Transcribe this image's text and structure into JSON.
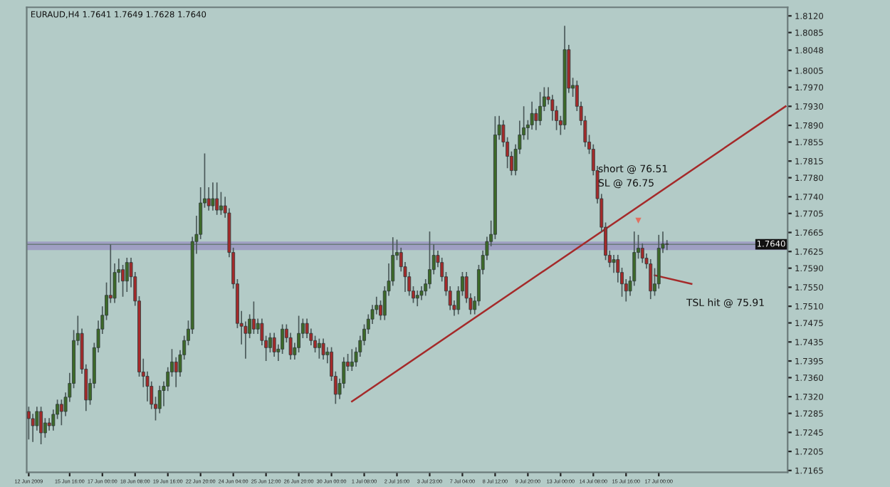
{
  "chart_data": {
    "type": "candlestick",
    "title": "EURAUD,H4 1.7641 1.7649 1.7628 1.7640",
    "annotations": [
      "short @ 76.51",
      "SL @ 76.75",
      "TSL hit @ 75.91"
    ],
    "categories": [
      "12 Jun 2009",
      null,
      null,
      null,
      null,
      null,
      null,
      null,
      null,
      null,
      "15 Jun 16:00",
      null,
      null,
      null,
      null,
      null,
      null,
      null,
      "17 Jun 00:00",
      null,
      null,
      null,
      null,
      null,
      null,
      null,
      "18 Jun 08:00",
      null,
      null,
      null,
      null,
      null,
      null,
      null,
      "19 Jun 16:00",
      null,
      null,
      null,
      null,
      null,
      null,
      null,
      "22 Jun 20:00",
      null,
      null,
      null,
      null,
      null,
      null,
      null,
      "24 Jun 04:00",
      null,
      null,
      null,
      null,
      null,
      null,
      null,
      "25 Jun 12:00",
      null,
      null,
      null,
      null,
      null,
      null,
      null,
      "26 Jun 20:00",
      null,
      null,
      null,
      null,
      null,
      null,
      null,
      "30 Jun 00:00",
      null,
      null,
      null,
      null,
      null,
      null,
      null,
      "1 Jul 08:00",
      null,
      null,
      null,
      null,
      null,
      null,
      null,
      "2 Jul 16:00",
      null,
      null,
      null,
      null,
      null,
      null,
      null,
      "3 Jul 23:00",
      null,
      null,
      null,
      null,
      null,
      null,
      null,
      "7 Jul 04:00",
      null,
      null,
      null,
      null,
      null,
      null,
      null,
      "8 Jul 12:00",
      null,
      null,
      null,
      null,
      null,
      null,
      null,
      "9 Jul 20:00",
      null,
      null,
      null,
      null,
      null,
      null,
      null,
      "13 Jul 00:00",
      null,
      null,
      null,
      null,
      null,
      null,
      null,
      "14 Jul 08:00",
      null,
      null,
      null,
      null,
      null,
      null,
      null,
      "15 Jul 16:00",
      null,
      null,
      null,
      null,
      null,
      null,
      null,
      "17 Jul 00:00",
      null,
      null,
      null,
      null,
      null,
      null,
      null,
      null,
      null,
      null,
      null,
      null,
      null,
      null,
      null,
      null,
      null,
      null,
      null,
      null,
      null,
      null,
      null,
      null,
      null,
      null,
      null,
      null,
      null,
      null,
      null
    ],
    "ohlc": [
      [
        1.7289,
        1.7299,
        1.723,
        1.7274
      ],
      [
        1.7274,
        1.7284,
        1.7225,
        1.7259
      ],
      [
        1.7259,
        1.7299,
        1.7249,
        1.7289
      ],
      [
        1.7289,
        1.7299,
        1.722,
        1.7244
      ],
      [
        1.7244,
        1.7275,
        1.7234,
        1.7265
      ],
      [
        1.7265,
        1.7275,
        1.7249,
        1.7259
      ],
      [
        1.7259,
        1.7293,
        1.7249,
        1.7283
      ],
      [
        1.7283,
        1.7314,
        1.7273,
        1.7304
      ],
      [
        1.7304,
        1.7314,
        1.726,
        1.7289
      ],
      [
        1.7289,
        1.7329,
        1.7279,
        1.7319
      ],
      [
        1.7319,
        1.737,
        1.7309,
        1.7348
      ],
      [
        1.7348,
        1.746,
        1.7338,
        1.7438
      ],
      [
        1.7438,
        1.749,
        1.7428,
        1.7453
      ],
      [
        1.7453,
        1.7463,
        1.7368,
        1.7378
      ],
      [
        1.7378,
        1.7388,
        1.729,
        1.7313
      ],
      [
        1.7313,
        1.7358,
        1.7303,
        1.7348
      ],
      [
        1.7348,
        1.7433,
        1.7338,
        1.7423
      ],
      [
        1.7423,
        1.748,
        1.7413,
        1.7462
      ],
      [
        1.7462,
        1.751,
        1.7452,
        1.7491
      ],
      [
        1.7491,
        1.756,
        1.7481,
        1.7533
      ],
      [
        1.7533,
        1.764,
        1.7517,
        1.7527
      ],
      [
        1.7527,
        1.76,
        1.7517,
        1.7581
      ],
      [
        1.7581,
        1.761,
        1.756,
        1.7587
      ],
      [
        1.7587,
        1.7597,
        1.753,
        1.7563
      ],
      [
        1.7563,
        1.7612,
        1.754,
        1.7602
      ],
      [
        1.7602,
        1.7612,
        1.755,
        1.7572
      ],
      [
        1.7572,
        1.7582,
        1.7511,
        1.7521
      ],
      [
        1.7521,
        1.7531,
        1.7362,
        1.7372
      ],
      [
        1.7372,
        1.74,
        1.734,
        1.7363
      ],
      [
        1.7363,
        1.7373,
        1.731,
        1.7342
      ],
      [
        1.7342,
        1.7352,
        1.7294,
        1.7304
      ],
      [
        1.7304,
        1.732,
        1.727,
        1.7295
      ],
      [
        1.7295,
        1.7343,
        1.7285,
        1.7333
      ],
      [
        1.7333,
        1.7352,
        1.73,
        1.7342
      ],
      [
        1.7342,
        1.7382,
        1.7332,
        1.7372
      ],
      [
        1.7372,
        1.742,
        1.7362,
        1.7393
      ],
      [
        1.7393,
        1.7403,
        1.734,
        1.7372
      ],
      [
        1.7372,
        1.7418,
        1.7362,
        1.7408
      ],
      [
        1.7408,
        1.7448,
        1.7398,
        1.7438
      ],
      [
        1.7438,
        1.748,
        1.7428,
        1.7462
      ],
      [
        1.7462,
        1.7656,
        1.7452,
        1.7646
      ],
      [
        1.7646,
        1.77,
        1.762,
        1.7661
      ],
      [
        1.7661,
        1.776,
        1.7651,
        1.7727
      ],
      [
        1.7727,
        1.7831,
        1.7717,
        1.7736
      ],
      [
        1.7736,
        1.776,
        1.7711,
        1.7721
      ],
      [
        1.7721,
        1.777,
        1.7711,
        1.7736
      ],
      [
        1.7736,
        1.777,
        1.7702,
        1.7712
      ],
      [
        1.7712,
        1.775,
        1.7702,
        1.7721
      ],
      [
        1.7721,
        1.774,
        1.7696,
        1.7706
      ],
      [
        1.7706,
        1.7716,
        1.7613,
        1.7623
      ],
      [
        1.7623,
        1.7633,
        1.7547,
        1.7557
      ],
      [
        1.7557,
        1.7567,
        1.7464,
        1.7474
      ],
      [
        1.7474,
        1.75,
        1.743,
        1.7468
      ],
      [
        1.7468,
        1.7478,
        1.74,
        1.7453
      ],
      [
        1.7453,
        1.7493,
        1.7443,
        1.7483
      ],
      [
        1.7483,
        1.752,
        1.7452,
        1.7462
      ],
      [
        1.7462,
        1.7484,
        1.7452,
        1.7474
      ],
      [
        1.7474,
        1.7484,
        1.7428,
        1.7438
      ],
      [
        1.7438,
        1.7448,
        1.7395,
        1.7423
      ],
      [
        1.7423,
        1.7454,
        1.7413,
        1.7444
      ],
      [
        1.7444,
        1.7454,
        1.7404,
        1.7414
      ],
      [
        1.7414,
        1.743,
        1.7395,
        1.742
      ],
      [
        1.742,
        1.7472,
        1.741,
        1.7462
      ],
      [
        1.7462,
        1.7472,
        1.7434,
        1.7444
      ],
      [
        1.7444,
        1.7454,
        1.7398,
        1.7408
      ],
      [
        1.7408,
        1.7433,
        1.7398,
        1.7423
      ],
      [
        1.7423,
        1.749,
        1.7413,
        1.7453
      ],
      [
        1.7453,
        1.7484,
        1.7443,
        1.7474
      ],
      [
        1.7474,
        1.7484,
        1.7443,
        1.7453
      ],
      [
        1.7453,
        1.7463,
        1.7428,
        1.7438
      ],
      [
        1.7438,
        1.7448,
        1.7413,
        1.7423
      ],
      [
        1.7423,
        1.7442,
        1.74,
        1.7432
      ],
      [
        1.7432,
        1.7442,
        1.7398,
        1.7408
      ],
      [
        1.7408,
        1.7424,
        1.739,
        1.7414
      ],
      [
        1.7414,
        1.7424,
        1.7353,
        1.7363
      ],
      [
        1.7363,
        1.7373,
        1.7305,
        1.7325
      ],
      [
        1.7325,
        1.7358,
        1.7315,
        1.7348
      ],
      [
        1.7348,
        1.7403,
        1.7338,
        1.7393
      ],
      [
        1.7393,
        1.741,
        1.7374,
        1.7384
      ],
      [
        1.7384,
        1.742,
        1.7374,
        1.7393
      ],
      [
        1.7393,
        1.7424,
        1.7383,
        1.7414
      ],
      [
        1.7414,
        1.7448,
        1.7404,
        1.7438
      ],
      [
        1.7438,
        1.7472,
        1.7428,
        1.7462
      ],
      [
        1.7462,
        1.7493,
        1.7452,
        1.7483
      ],
      [
        1.7483,
        1.7513,
        1.7473,
        1.7503
      ],
      [
        1.7503,
        1.753,
        1.7493,
        1.7512
      ],
      [
        1.7512,
        1.7522,
        1.7481,
        1.7491
      ],
      [
        1.7491,
        1.7552,
        1.7481,
        1.7542
      ],
      [
        1.7542,
        1.76,
        1.7532,
        1.7563
      ],
      [
        1.7563,
        1.7655,
        1.7553,
        1.7617
      ],
      [
        1.7617,
        1.765,
        1.7607,
        1.7623
      ],
      [
        1.7623,
        1.7633,
        1.7583,
        1.7593
      ],
      [
        1.7593,
        1.7603,
        1.754,
        1.7572
      ],
      [
        1.7572,
        1.7582,
        1.7532,
        1.7542
      ],
      [
        1.7542,
        1.7552,
        1.7517,
        1.7527
      ],
      [
        1.7527,
        1.7543,
        1.751,
        1.7533
      ],
      [
        1.7533,
        1.7552,
        1.7523,
        1.7542
      ],
      [
        1.7542,
        1.7567,
        1.7532,
        1.7557
      ],
      [
        1.7557,
        1.7667,
        1.7547,
        1.7587
      ],
      [
        1.7587,
        1.764,
        1.7577,
        1.7617
      ],
      [
        1.7617,
        1.7627,
        1.7592,
        1.7602
      ],
      [
        1.7602,
        1.7612,
        1.7562,
        1.7572
      ],
      [
        1.7572,
        1.7582,
        1.7532,
        1.7542
      ],
      [
        1.7542,
        1.7552,
        1.7502,
        1.7512
      ],
      [
        1.7512,
        1.7522,
        1.749,
        1.7503
      ],
      [
        1.7503,
        1.7552,
        1.7493,
        1.7542
      ],
      [
        1.7542,
        1.7582,
        1.7532,
        1.7572
      ],
      [
        1.7572,
        1.7582,
        1.7517,
        1.7527
      ],
      [
        1.7527,
        1.7537,
        1.7493,
        1.7503
      ],
      [
        1.7503,
        1.7531,
        1.7493,
        1.7521
      ],
      [
        1.7521,
        1.7597,
        1.7511,
        1.7587
      ],
      [
        1.7587,
        1.7627,
        1.7577,
        1.7617
      ],
      [
        1.7617,
        1.7656,
        1.7607,
        1.7646
      ],
      [
        1.7646,
        1.769,
        1.7636,
        1.7661
      ],
      [
        1.7661,
        1.7909,
        1.7651,
        1.787
      ],
      [
        1.787,
        1.791,
        1.786,
        1.7891
      ],
      [
        1.7891,
        1.7901,
        1.7845,
        1.7855
      ],
      [
        1.7855,
        1.7865,
        1.78,
        1.7825
      ],
      [
        1.7825,
        1.7835,
        1.7785,
        1.7795
      ],
      [
        1.7795,
        1.785,
        1.7785,
        1.784
      ],
      [
        1.784,
        1.79,
        1.783,
        1.787
      ],
      [
        1.787,
        1.793,
        1.786,
        1.7885
      ],
      [
        1.7885,
        1.7901,
        1.786,
        1.7891
      ],
      [
        1.7891,
        1.794,
        1.7881,
        1.7915
      ],
      [
        1.7915,
        1.7925,
        1.788,
        1.79
      ],
      [
        1.79,
        1.796,
        1.789,
        1.793
      ],
      [
        1.793,
        1.797,
        1.792,
        1.795
      ],
      [
        1.795,
        1.797,
        1.7934,
        1.7944
      ],
      [
        1.7944,
        1.7954,
        1.79,
        1.7921
      ],
      [
        1.7921,
        1.7931,
        1.788,
        1.79
      ],
      [
        1.79,
        1.791,
        1.787,
        1.7891
      ],
      [
        1.7891,
        1.8099,
        1.7881,
        1.8049
      ],
      [
        1.8049,
        1.8059,
        1.7958,
        1.7968
      ],
      [
        1.7968,
        1.799,
        1.795,
        1.7974
      ],
      [
        1.7974,
        1.7984,
        1.792,
        1.793
      ],
      [
        1.793,
        1.794,
        1.789,
        1.79
      ],
      [
        1.79,
        1.791,
        1.7845,
        1.7855
      ],
      [
        1.7855,
        1.787,
        1.783,
        1.784
      ],
      [
        1.784,
        1.785,
        1.7785,
        1.7795
      ],
      [
        1.7795,
        1.7805,
        1.7726,
        1.7736
      ],
      [
        1.7736,
        1.7746,
        1.7666,
        1.7676
      ],
      [
        1.7676,
        1.7686,
        1.7607,
        1.7617
      ],
      [
        1.7617,
        1.7627,
        1.7592,
        1.7602
      ],
      [
        1.7602,
        1.7618,
        1.758,
        1.7608
      ],
      [
        1.7608,
        1.7618,
        1.756,
        1.7581
      ],
      [
        1.7581,
        1.7591,
        1.753,
        1.7557
      ],
      [
        1.7557,
        1.7567,
        1.752,
        1.7542
      ],
      [
        1.7542,
        1.7573,
        1.7532,
        1.7563
      ],
      [
        1.7563,
        1.7667,
        1.7553,
        1.7623
      ],
      [
        1.7623,
        1.766,
        1.761,
        1.7632
      ],
      [
        1.7632,
        1.7642,
        1.7601,
        1.7611
      ],
      [
        1.7611,
        1.7621,
        1.7589,
        1.7599
      ],
      [
        1.7599,
        1.7609,
        1.7525,
        1.7542
      ],
      [
        1.7542,
        1.759,
        1.7532,
        1.7557
      ],
      [
        1.7557,
        1.766,
        1.7547,
        1.7632
      ],
      [
        1.7632,
        1.7667,
        1.7622,
        1.7641
      ],
      [
        1.7641,
        1.7649,
        1.7628,
        1.764
      ],
      null,
      null,
      null,
      null,
      null,
      null,
      null,
      null,
      null,
      null,
      null,
      null,
      null,
      null,
      null,
      null,
      null,
      null,
      null,
      null,
      null,
      null,
      null,
      null,
      null,
      null,
      null,
      null,
      null
    ],
    "series": [
      {
        "type": "line",
        "color": "#a52a2a",
        "values": [
          null,
          null,
          null,
          null,
          null,
          null,
          null,
          null,
          null,
          null,
          null,
          null,
          null,
          null,
          null,
          null,
          null,
          null,
          null,
          null,
          null,
          null,
          null,
          null,
          null,
          null,
          null,
          null,
          null,
          null,
          null,
          null,
          null,
          null,
          null,
          null,
          null,
          null,
          null,
          null,
          null,
          null,
          null,
          null,
          null,
          null,
          null,
          null,
          null,
          null,
          null,
          null,
          null,
          null,
          null,
          null,
          null,
          null,
          null,
          null,
          null,
          null,
          null,
          null,
          null,
          null,
          null,
          null,
          null,
          null,
          null,
          null,
          null,
          null,
          null,
          null,
          null,
          null,
          null,
          1.731,
          null,
          null,
          null,
          null,
          null,
          null,
          null,
          null,
          null,
          null,
          null,
          null,
          null,
          null,
          null,
          null,
          null,
          null,
          null,
          null,
          null,
          null,
          null,
          null,
          null,
          null,
          null,
          null,
          null,
          null,
          null,
          null,
          null,
          null,
          null,
          null,
          null,
          null,
          null,
          null,
          null,
          null,
          null,
          null,
          null,
          null,
          null,
          null,
          null,
          null,
          null,
          null,
          null,
          null,
          null,
          null,
          null,
          null,
          null,
          null,
          null,
          null,
          null,
          null,
          null,
          null,
          null,
          null,
          null,
          null,
          null,
          null,
          null,
          null,
          null,
          null,
          null,
          null,
          null,
          null,
          null,
          null,
          null,
          null,
          null,
          null,
          null,
          null,
          null,
          null,
          null,
          null,
          null,
          null,
          null,
          null,
          null,
          null,
          null,
          null,
          null,
          null,
          null,
          null,
          null,
          1.793
        ]
      },
      {
        "type": "line",
        "color": "#a52a2a",
        "values": [
          null,
          null,
          null,
          null,
          null,
          null,
          null,
          null,
          null,
          null,
          null,
          null,
          null,
          null,
          null,
          null,
          null,
          null,
          null,
          null,
          null,
          null,
          null,
          null,
          null,
          null,
          null,
          null,
          null,
          null,
          null,
          null,
          null,
          null,
          null,
          null,
          null,
          null,
          null,
          null,
          null,
          null,
          null,
          null,
          null,
          null,
          null,
          null,
          null,
          null,
          null,
          null,
          null,
          null,
          null,
          null,
          null,
          null,
          null,
          null,
          null,
          null,
          null,
          null,
          null,
          null,
          null,
          null,
          null,
          null,
          null,
          null,
          null,
          null,
          null,
          null,
          null,
          null,
          null,
          null,
          null,
          null,
          null,
          null,
          null,
          null,
          null,
          null,
          null,
          null,
          null,
          null,
          null,
          null,
          null,
          null,
          null,
          null,
          null,
          null,
          null,
          null,
          null,
          null,
          null,
          null,
          null,
          null,
          null,
          null,
          null,
          null,
          null,
          null,
          null,
          null,
          null,
          null,
          null,
          null,
          null,
          null,
          null,
          null,
          null,
          null,
          null,
          null,
          null,
          null,
          null,
          null,
          null,
          null,
          null,
          null,
          null,
          null,
          null,
          null,
          null,
          null,
          null,
          null,
          null,
          null,
          null,
          null,
          null,
          null,
          null,
          null,
          null,
          1.7575,
          null,
          null,
          null,
          null,
          null,
          null,
          null,
          null,
          1.7557,
          null,
          null,
          null,
          null,
          null,
          null,
          null,
          null,
          null,
          null,
          null,
          null,
          null,
          null,
          null,
          null,
          null,
          null,
          null,
          null,
          null,
          null,
          null
        ]
      },
      {
        "type": "scatter",
        "marker": "triangle",
        "color": "#e07060",
        "values": [
          null,
          null,
          null,
          null,
          null,
          null,
          null,
          null,
          null,
          null,
          null,
          null,
          null,
          null,
          null,
          null,
          null,
          null,
          null,
          null,
          null,
          null,
          null,
          null,
          null,
          null,
          null,
          null,
          null,
          null,
          null,
          null,
          null,
          null,
          null,
          null,
          null,
          null,
          null,
          null,
          null,
          null,
          null,
          null,
          null,
          null,
          null,
          null,
          null,
          null,
          null,
          null,
          null,
          null,
          null,
          null,
          null,
          null,
          null,
          null,
          null,
          null,
          null,
          null,
          null,
          null,
          null,
          null,
          null,
          null,
          null,
          null,
          null,
          null,
          null,
          null,
          null,
          null,
          null,
          null,
          null,
          null,
          null,
          null,
          null,
          null,
          null,
          null,
          null,
          null,
          null,
          null,
          null,
          null,
          null,
          null,
          null,
          null,
          null,
          null,
          null,
          null,
          null,
          null,
          null,
          null,
          null,
          null,
          null,
          null,
          null,
          null,
          null,
          null,
          null,
          null,
          null,
          null,
          null,
          null,
          null,
          null,
          null,
          null,
          null,
          null,
          null,
          null,
          null,
          null,
          null,
          null,
          null,
          null,
          null,
          null,
          null,
          null,
          null,
          null,
          null,
          null,
          null,
          null,
          null,
          null,
          null,
          null,
          null,
          1.769,
          null,
          null,
          null,
          null,
          null,
          null,
          null,
          null,
          null,
          null,
          null,
          null,
          null,
          null,
          null,
          null,
          null,
          null,
          null,
          null,
          null,
          null,
          null,
          null,
          null,
          null,
          null,
          null,
          null,
          null,
          null,
          null,
          null,
          null,
          null,
          null
        ]
      }
    ],
    "bands": [
      {
        "axis": "y",
        "from": 1.7628,
        "to": 1.7646,
        "color": "#9b98c2"
      }
    ],
    "ref_lines": [
      {
        "axis": "y",
        "value": 1.764,
        "label": "1.7640",
        "color": "#6b7b7b"
      }
    ],
    "ylim": [
      1.7161,
      1.8138
    ],
    "yticks": [
      {
        "value": 1.812,
        "label": "1.8120"
      },
      {
        "value": 1.8085,
        "label": "1.8085"
      },
      {
        "value": 1.8048,
        "label": "1.8048"
      },
      {
        "value": 1.8005,
        "label": "1.8005"
      },
      {
        "value": 1.797,
        "label": "1.7970"
      },
      {
        "value": 1.793,
        "label": "1.7930"
      },
      {
        "value": 1.789,
        "label": "1.7890"
      },
      {
        "value": 1.7855,
        "label": "1.7855"
      },
      {
        "value": 1.7815,
        "label": "1.7815"
      },
      {
        "value": 1.778,
        "label": "1.7780"
      },
      {
        "value": 1.774,
        "label": "1.7740"
      },
      {
        "value": 1.7705,
        "label": "1.7705"
      },
      {
        "value": 1.7665,
        "label": "1.7665"
      },
      {
        "value": 1.7625,
        "label": "1.7625"
      },
      {
        "value": 1.759,
        "label": "1.7590"
      },
      {
        "value": 1.755,
        "label": "1.7550"
      },
      {
        "value": 1.751,
        "label": "1.7510"
      },
      {
        "value": 1.7475,
        "label": "1.7475"
      },
      {
        "value": 1.7435,
        "label": "1.7435"
      },
      {
        "value": 1.7395,
        "label": "1.7395"
      },
      {
        "value": 1.736,
        "label": "1.7360"
      },
      {
        "value": 1.732,
        "label": "1.7320"
      },
      {
        "value": 1.7285,
        "label": "1.7285"
      },
      {
        "value": 1.7245,
        "label": "1.7245"
      },
      {
        "value": 1.7205,
        "label": "1.7205"
      },
      {
        "value": 1.7165,
        "label": "1.7165"
      }
    ],
    "grid": false,
    "legend": false
  }
}
